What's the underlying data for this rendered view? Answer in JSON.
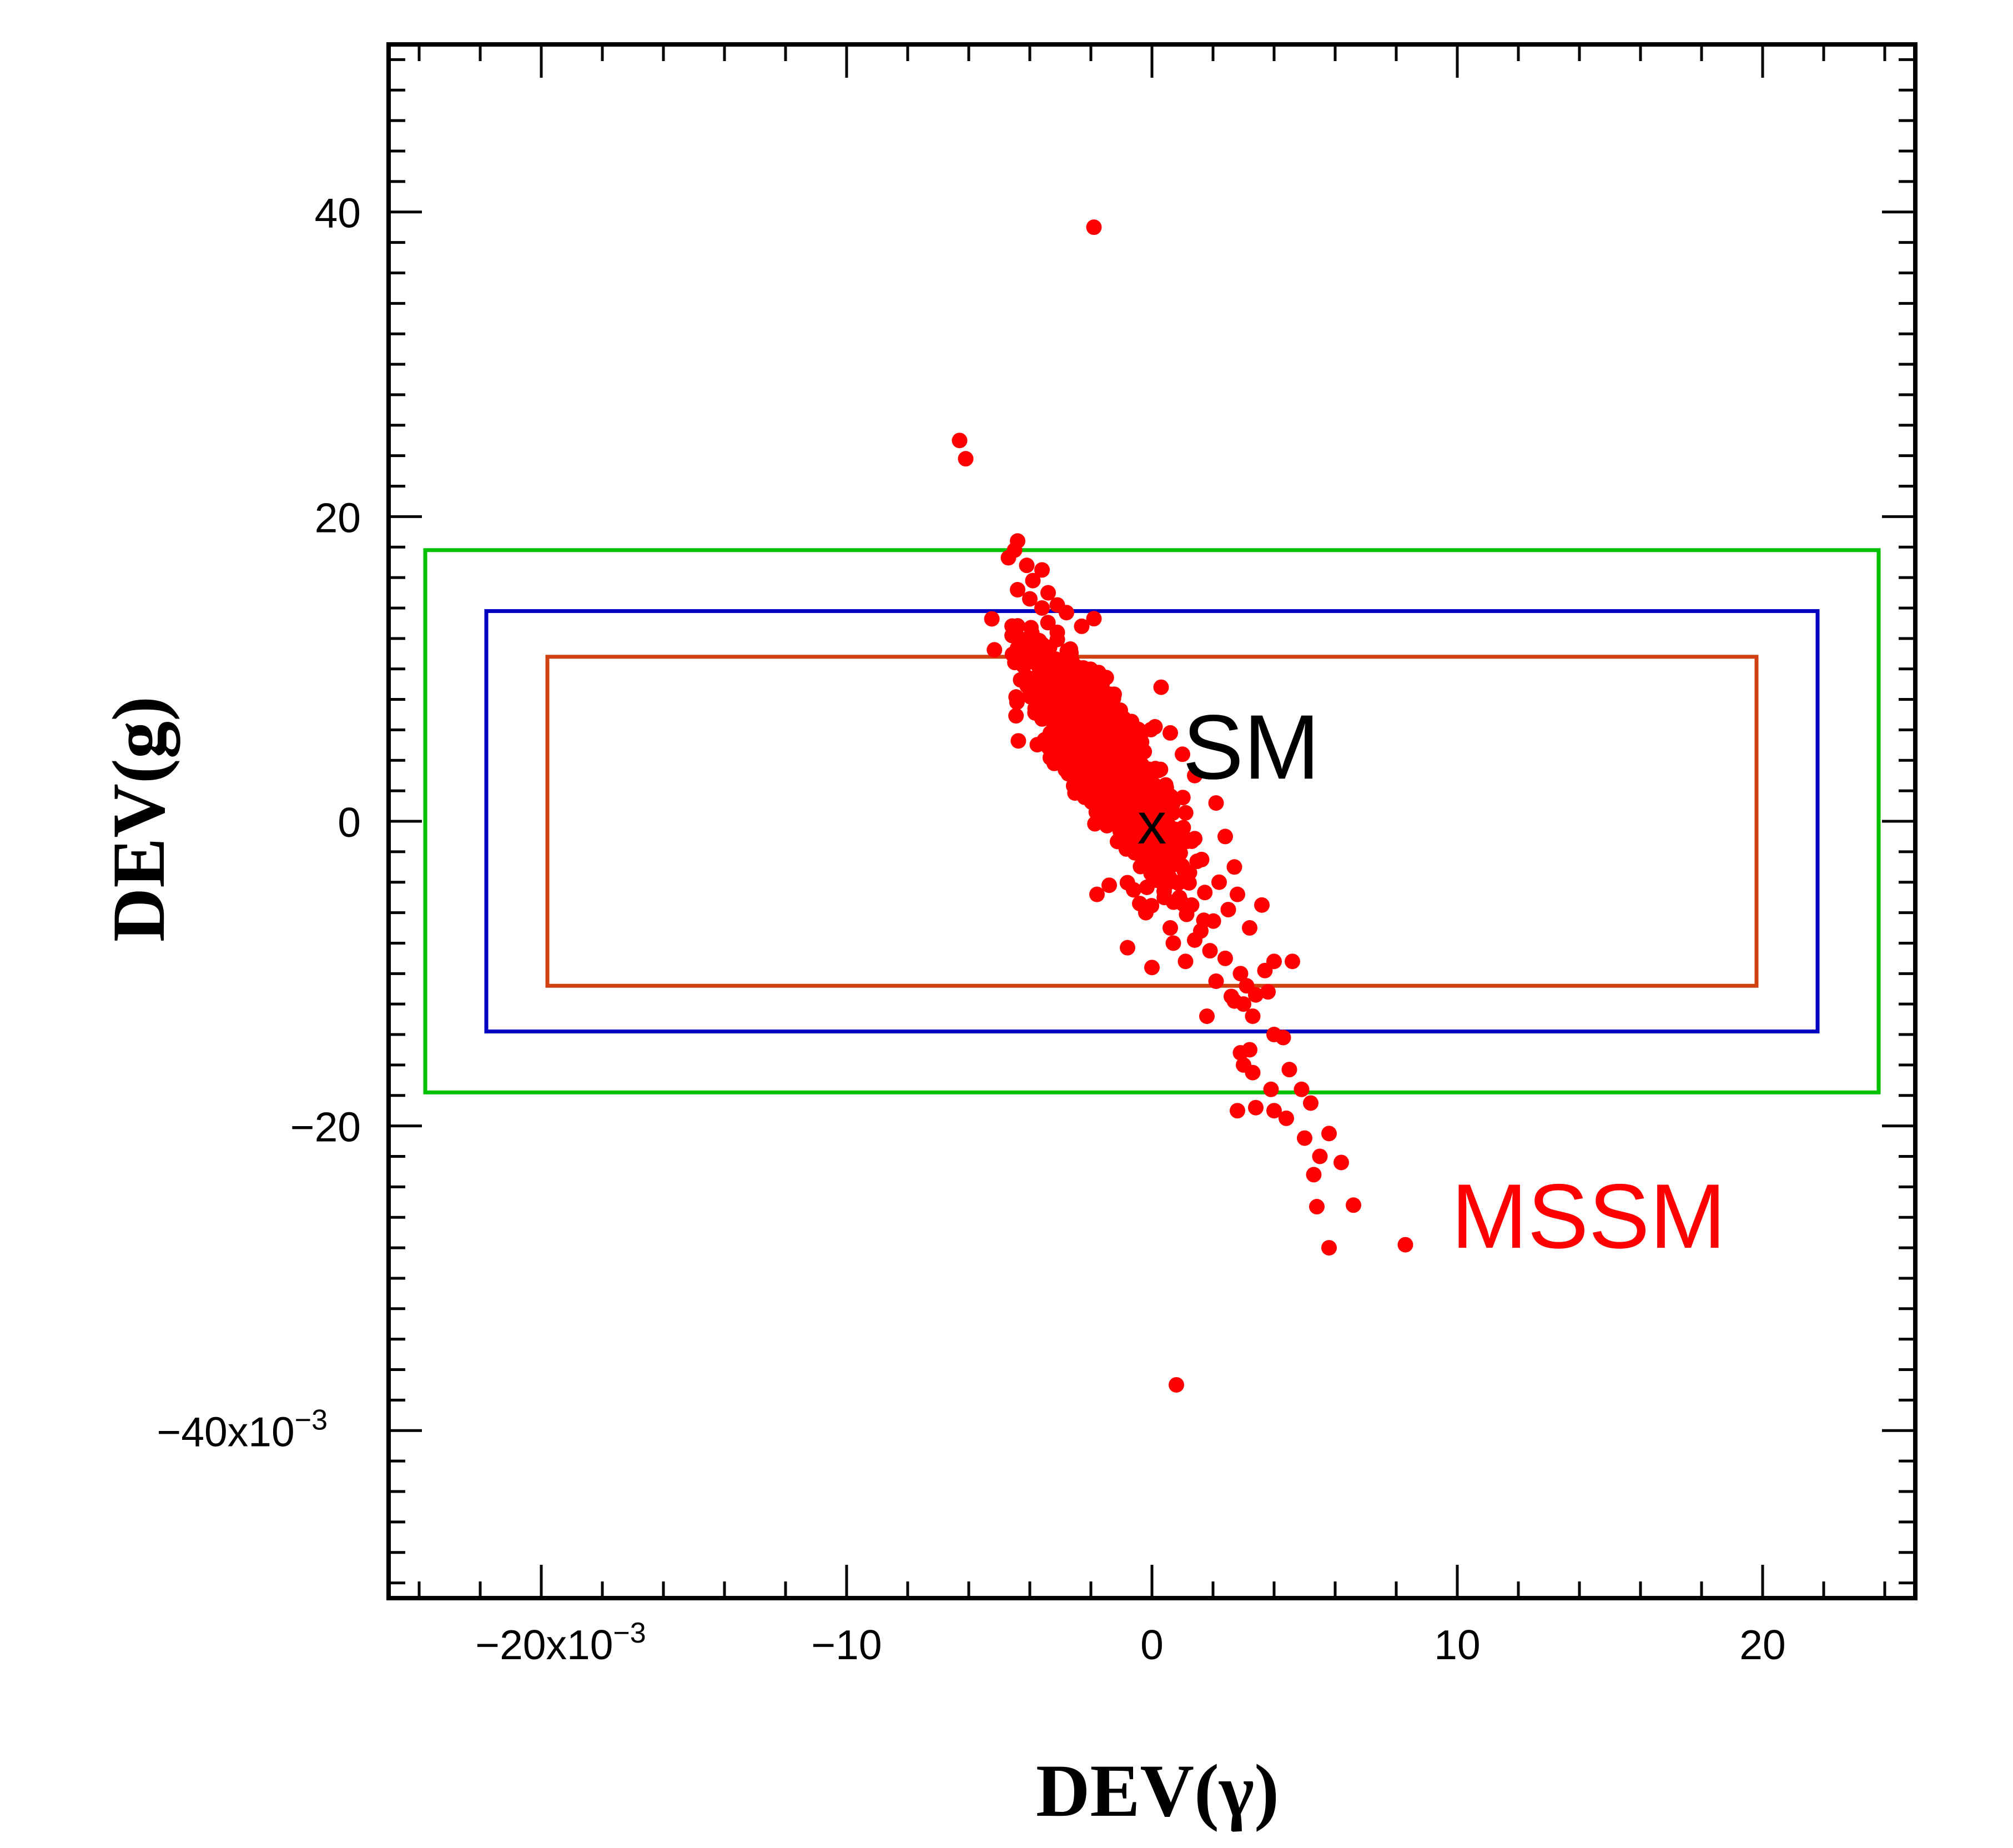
{
  "chart_data": {
    "type": "scatter",
    "title": "",
    "xlabel": "DEV(γ)",
    "ylabel": "DEV(g)",
    "xlim": [
      -0.025,
      0.025
    ],
    "ylim": [
      -0.051,
      0.051
    ],
    "xticks": [
      {
        "value": -0.02,
        "label": "−20x10",
        "exp": "−3"
      },
      {
        "value": -0.01,
        "label": "−10",
        "exp": ""
      },
      {
        "value": 0.0,
        "label": "0",
        "exp": ""
      },
      {
        "value": 0.01,
        "label": "10",
        "exp": ""
      },
      {
        "value": 0.02,
        "label": "20",
        "exp": ""
      }
    ],
    "yticks": [
      {
        "value": 0.04,
        "label": "40",
        "exp": ""
      },
      {
        "value": 0.02,
        "label": "20",
        "exp": ""
      },
      {
        "value": 0.0,
        "label": "0",
        "exp": ""
      },
      {
        "value": -0.02,
        "label": "−20",
        "exp": ""
      },
      {
        "value": -0.04,
        "label": "−40x10",
        "exp": "−3"
      }
    ],
    "x_minor_step": 0.002,
    "y_minor_step": 0.002,
    "grid": false,
    "series": [
      {
        "name": "MSSM",
        "color": "#ff0000",
        "cluster": {
          "center": [
            -0.0015,
            0.004
          ],
          "slope": -3.5,
          "count": 1400,
          "spread_along": 0.0022,
          "spread_across": 0.0006
        },
        "points": [
          [
            -0.0019,
            0.039
          ],
          [
            -0.0063,
            0.025
          ],
          [
            -0.0061,
            0.0238
          ],
          [
            -0.0044,
            0.0184
          ],
          [
            -0.0045,
            0.0178
          ],
          [
            -0.0047,
            0.0173
          ],
          [
            -0.0041,
            0.0168
          ],
          [
            -0.0036,
            0.0165
          ],
          [
            -0.0039,
            0.0158
          ],
          [
            -0.0034,
            0.015
          ],
          [
            -0.0044,
            0.0152
          ],
          [
            -0.004,
            0.0146
          ],
          [
            -0.0031,
            0.0142
          ],
          [
            -0.0028,
            0.0137
          ],
          [
            -0.0036,
            0.014
          ],
          [
            -0.0023,
            0.0128
          ],
          [
            -0.0019,
            0.0133
          ],
          [
            -0.0031,
            0.0124
          ],
          [
            0.0001,
            0.0062
          ],
          [
            0.0003,
            0.0088
          ],
          [
            0.0006,
            0.0058
          ],
          [
            0.001,
            0.0044
          ],
          [
            0.0014,
            0.003
          ],
          [
            0.0021,
            0.0012
          ],
          [
            0.0024,
            -0.001
          ],
          [
            0.0027,
            -0.003
          ],
          [
            -0.0032,
            0.0038
          ],
          [
            -0.0027,
            0.0052
          ],
          [
            -0.0018,
            -0.0048
          ],
          [
            -0.0014,
            -0.0042
          ],
          [
            -0.0006,
            -0.0045
          ],
          [
            -0.0002,
            -0.006
          ],
          [
            -0.0008,
            -0.0083
          ],
          [
            0.0,
            -0.0096
          ],
          [
            0.0007,
            -0.008
          ],
          [
            0.0011,
            -0.0092
          ],
          [
            0.0014,
            -0.0078
          ],
          [
            0.0019,
            -0.0085
          ],
          [
            0.0017,
            -0.0065
          ],
          [
            0.0025,
            -0.0058
          ],
          [
            0.0028,
            -0.0048
          ],
          [
            0.0022,
            -0.004
          ],
          [
            0.0013,
            -0.0055
          ],
          [
            0.0006,
            -0.007
          ],
          [
            0.0009,
            -0.005
          ],
          [
            0.0016,
            -0.0072
          ],
          [
            0.0004,
            -0.0046
          ],
          [
            -0.0004,
            -0.0054
          ],
          [
            0.0024,
            -0.009
          ],
          [
            0.0029,
            -0.01
          ],
          [
            0.0031,
            -0.0108
          ],
          [
            0.0034,
            -0.0114
          ],
          [
            0.0027,
            -0.0118
          ],
          [
            0.0038,
            -0.0112
          ],
          [
            0.0037,
            -0.0098
          ],
          [
            0.004,
            -0.0092
          ],
          [
            0.0046,
            -0.0092
          ],
          [
            0.0032,
            -0.007
          ],
          [
            0.0036,
            -0.0055
          ],
          [
            0.003,
            -0.012
          ],
          [
            0.0033,
            -0.0128
          ],
          [
            0.0021,
            -0.0105
          ],
          [
            0.0026,
            -0.0115
          ],
          [
            0.0018,
            -0.0128
          ],
          [
            0.0029,
            -0.0152
          ],
          [
            0.0032,
            -0.015
          ],
          [
            0.004,
            -0.014
          ],
          [
            0.0043,
            -0.0142
          ],
          [
            0.003,
            -0.016
          ],
          [
            0.0033,
            -0.0165
          ],
          [
            0.0045,
            -0.0163
          ],
          [
            0.0039,
            -0.0176
          ],
          [
            0.0028,
            -0.019
          ],
          [
            0.0034,
            -0.0188
          ],
          [
            0.004,
            -0.019
          ],
          [
            0.0044,
            -0.0195
          ],
          [
            0.0049,
            -0.0176
          ],
          [
            0.0052,
            -0.0185
          ],
          [
            0.005,
            -0.0208
          ],
          [
            0.0055,
            -0.022
          ],
          [
            0.0058,
            -0.0205
          ],
          [
            0.0062,
            -0.0224
          ],
          [
            0.0053,
            -0.0232
          ],
          [
            0.0054,
            -0.0253
          ],
          [
            0.0058,
            -0.028
          ],
          [
            0.0066,
            -0.0252
          ],
          [
            0.0083,
            -0.0278
          ],
          [
            0.0008,
            -0.037
          ]
        ]
      }
    ],
    "boxes": [
      {
        "name": "green-box",
        "color": "#00c000",
        "x": [
          -0.0238,
          0.0238
        ],
        "y": [
          -0.0178,
          0.0178
        ]
      },
      {
        "name": "blue-box",
        "color": "#0000c0",
        "x": [
          -0.0218,
          0.0218
        ],
        "y": [
          -0.0138,
          0.0138
        ]
      },
      {
        "name": "orange-box",
        "color": "#d04010",
        "x": [
          -0.0198,
          0.0198
        ],
        "y": [
          -0.0108,
          0.0108
        ]
      }
    ],
    "annotations": [
      {
        "name": "sm-marker",
        "text": "x",
        "x": 0.0,
        "y": 0.0,
        "color": "#000000"
      },
      {
        "name": "sm-label",
        "text": "SM",
        "x": 0.001,
        "y": 0.0028,
        "color": "#000000"
      },
      {
        "name": "mssm-label",
        "text": "MSSM",
        "x": 0.0098,
        "y": -0.028,
        "color": "#ff0000"
      }
    ]
  }
}
